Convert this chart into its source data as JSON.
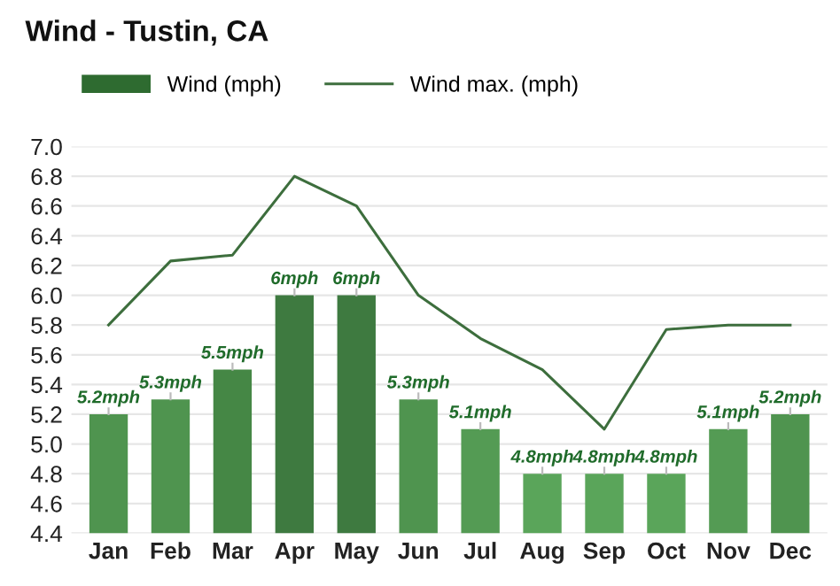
{
  "chart_data": {
    "type": "bar",
    "title": "Wind - Tustin, CA",
    "categories": [
      "Jan",
      "Feb",
      "Mar",
      "Apr",
      "May",
      "Jun",
      "Jul",
      "Aug",
      "Sep",
      "Oct",
      "Nov",
      "Dec"
    ],
    "series": [
      {
        "name": "Wind (mph)",
        "color": "#2e6b30",
        "colors": [
          "#4f944f",
          "#4f944f",
          "#458745",
          "#3e7a40",
          "#3e7a40",
          "#4f944f",
          "#549b54",
          "#5aa55a",
          "#5aa55a",
          "#5aa55a",
          "#549b54",
          "#4f944f"
        ],
        "values": [
          5.2,
          5.3,
          5.5,
          6.0,
          6.0,
          5.3,
          5.1,
          4.8,
          4.8,
          4.8,
          5.1,
          5.2
        ],
        "value_labels": [
          "5.2mph",
          "5.3mph",
          "5.5mph",
          "6mph",
          "6mph",
          "5.3mph",
          "5.1mph",
          "4.8mph",
          "4.8mph",
          "4.8mph",
          "5.1mph",
          "5.2mph"
        ]
      },
      {
        "name": "Wind max. (mph)",
        "type": "line",
        "color": "#3d6e3d",
        "values": [
          5.8,
          6.23,
          6.27,
          6.8,
          6.6,
          6.0,
          5.71,
          5.5,
          5.1,
          5.77,
          5.8,
          5.8
        ]
      }
    ],
    "ylim": [
      4.4,
      7.0
    ],
    "yticks": [
      4.4,
      4.6,
      4.8,
      {
        "value": 5,
        "label": "5.0"
      },
      5.2,
      5.4,
      5.6,
      5.8,
      {
        "value": 6,
        "label": "6.0"
      },
      6.2,
      6.4,
      6.6,
      6.8,
      {
        "value": 7,
        "label": "7.0"
      }
    ],
    "grid": "y",
    "legend": "top left",
    "marker": "none",
    "line_style": "solid"
  }
}
